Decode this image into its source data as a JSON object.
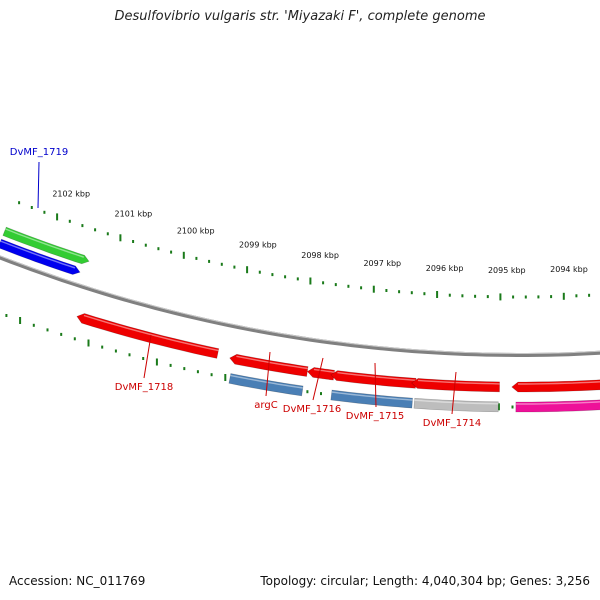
{
  "title": "Desulfovibrio vulgaris str. 'Miyazaki F', complete genome",
  "footer": {
    "accession": "Accession: NC_011769",
    "summary": "Topology: circular; Length: 4,040,304 bp; Genes: 3,256"
  },
  "ruler_labels": [
    "2102 kbp",
    "2101 kbp",
    "2100 kbp",
    "2099 kbp",
    "2098 kbp",
    "2097 kbp",
    "2096 kbp",
    "2095 kbp",
    "2094 kbp"
  ],
  "genes": [
    {
      "label": "DvMF_1719",
      "label_color": "#0000cc",
      "fill": "#33cc33",
      "strand": "+",
      "lane": "outer2"
    },
    {
      "label": "",
      "label_color": "",
      "fill": "#0000ee",
      "strand": "+",
      "lane": "outer1"
    },
    {
      "label": "DvMF_1718",
      "label_color": "#cc0000",
      "fill": "#ee0000",
      "strand": "-",
      "lane": "inner1"
    },
    {
      "label": "",
      "label_color": "",
      "fill": "#ee0000",
      "strand": "-",
      "lane": "inner1"
    },
    {
      "label": "argC",
      "label_color": "#cc0000",
      "fill": "#4a7fb5",
      "strand": "",
      "lane": "inner2"
    },
    {
      "label": "DvMF_1716",
      "label_color": "#cc0000",
      "fill": "#ee0000",
      "strand": "-",
      "lane": "inner1"
    },
    {
      "label": "DvMF_1715",
      "label_color": "#cc0000",
      "fill": "#ee0000",
      "strand": "-",
      "lane": "inner1"
    },
    {
      "label": "",
      "label_color": "",
      "fill": "#4a7fb5",
      "strand": "",
      "lane": "inner2"
    },
    {
      "label": "DvMF_1714",
      "label_color": "#cc0000",
      "fill": "#ee0000",
      "strand": "-",
      "lane": "inner1"
    },
    {
      "label": "",
      "label_color": "",
      "fill": "#bdbdbd",
      "strand": "",
      "lane": "inner2"
    },
    {
      "label": "",
      "label_color": "",
      "fill": "#ee0000",
      "strand": "-",
      "lane": "inner1"
    },
    {
      "label": "",
      "label_color": "",
      "fill": "#ee1199",
      "strand": "",
      "lane": "inner2"
    }
  ],
  "colors": {
    "backbone": "#808080",
    "tick": "#1a7a1a",
    "label_red": "#cc0000",
    "label_blue": "#0000cc"
  }
}
